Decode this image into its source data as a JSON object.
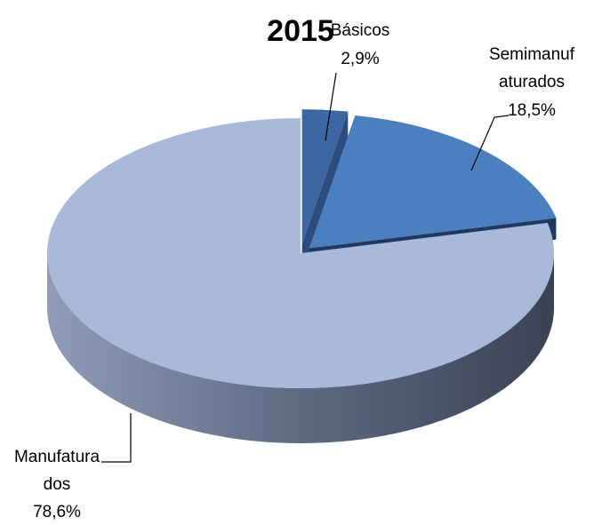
{
  "chart_data": {
    "type": "pie",
    "title": "2015",
    "categories": [
      "Básicos",
      "Semimanufaturados",
      "Manufaturados"
    ],
    "values": [
      2.9,
      18.5,
      78.6
    ],
    "value_labels": [
      "2,9%",
      "18,5%",
      "78,6%"
    ],
    "colors": [
      "#3c67a3",
      "#4b7fc0",
      "#a9b9da"
    ]
  }
}
